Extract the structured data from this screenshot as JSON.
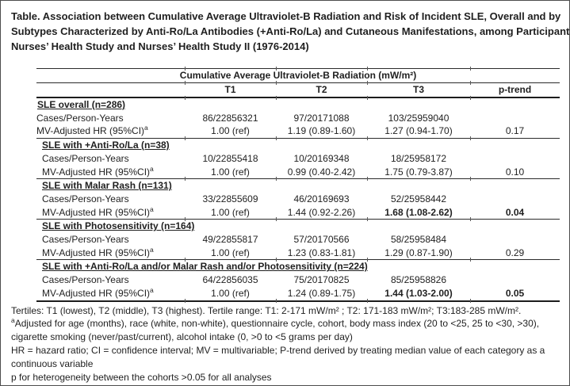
{
  "title": {
    "lines": [
      "Table. Association between Cumulative Average Ultraviolet-B Radiation and Risk of Incident SLE, Overall and by",
      "Subtypes Characterized by Anti-Ro/La Antibodies (+Anti-Ro/La) and Cutaneous Manifestations, among Participants in",
      "Nurses’ Health Study and Nurses’ Health Study II (1976-2014)"
    ]
  },
  "table": {
    "span_header": "Cumulative Average Ultraviolet-B Radiation (mW/m²)",
    "columns": [
      "T1",
      "T2",
      "T3",
      "p-trend"
    ],
    "sections": [
      {
        "header": "SLE overall (n=286)",
        "indent": false,
        "rows": [
          {
            "label": "Cases/Person-Years",
            "label_sup": "",
            "values": [
              "86/22856321",
              "97/20171088",
              "103/25959040",
              ""
            ],
            "bold": [
              false,
              false,
              false,
              false
            ]
          },
          {
            "label": "MV-Adjusted HR (95%CI)",
            "label_sup": "a",
            "values": [
              "1.00 (ref)",
              "1.19 (0.89-1.60)",
              "1.27 (0.94-1.70)",
              "0.17"
            ],
            "bold": [
              false,
              false,
              false,
              false
            ]
          }
        ]
      },
      {
        "header": "SLE with +Anti-Ro/La (n=38)",
        "indent": true,
        "rows": [
          {
            "label": "Cases/Person-Years",
            "label_sup": "",
            "values": [
              "10/22855418",
              "10/20169348",
              "18/25958172",
              ""
            ],
            "bold": [
              false,
              false,
              false,
              false
            ]
          },
          {
            "label": "MV-Adjusted HR (95%CI)",
            "label_sup": "a",
            "values": [
              "1.00 (ref)",
              "0.99 (0.40-2.42)",
              "1.75 (0.79-3.87)",
              "0.10"
            ],
            "bold": [
              false,
              false,
              false,
              false
            ]
          }
        ]
      },
      {
        "header": "SLE with Malar Rash (n=131)",
        "indent": true,
        "rows": [
          {
            "label": "Cases/Person-Years",
            "label_sup": "",
            "values": [
              "33/22855609",
              "46/20169693",
              "52/25958442",
              ""
            ],
            "bold": [
              false,
              false,
              false,
              false
            ]
          },
          {
            "label": "MV-Adjusted HR (95%CI)",
            "label_sup": "a",
            "values": [
              "1.00 (ref)",
              "1.44 (0.92-2.26)",
              "1.68 (1.08-2.62)",
              "0.04"
            ],
            "bold": [
              false,
              false,
              true,
              true
            ]
          }
        ]
      },
      {
        "header": "SLE with Photosensitivity (n=164)",
        "indent": true,
        "rows": [
          {
            "label": "Cases/Person-Years",
            "label_sup": "",
            "values": [
              "49/22855817",
              "57/20170566",
              "58/25958484",
              ""
            ],
            "bold": [
              false,
              false,
              false,
              false
            ]
          },
          {
            "label": "MV-Adjusted HR (95%CI)",
            "label_sup": "a",
            "values": [
              "1.00 (ref)",
              "1.23 (0.83-1.81)",
              "1.29 (0.87-1.90)",
              "0.29"
            ],
            "bold": [
              false,
              false,
              false,
              false
            ]
          }
        ]
      },
      {
        "header": "SLE with +Anti-Ro/La and/or Malar Rash and/or Photosensitivity (n=224)",
        "indent": true,
        "rows": [
          {
            "label": "Cases/Person-Years",
            "label_sup": "",
            "values": [
              "64/22856035",
              "75/20170825",
              "85/25958826",
              ""
            ],
            "bold": [
              false,
              false,
              false,
              false
            ]
          },
          {
            "label": "MV-Adjusted HR (95%CI)",
            "label_sup": "a",
            "values": [
              "1.00 (ref)",
              "1.24 (0.89-1.75)",
              "1.44 (1.03-2.00)",
              "0.05"
            ],
            "bold": [
              false,
              false,
              true,
              true
            ]
          }
        ]
      }
    ]
  },
  "footnotes": [
    {
      "sup": "",
      "text": "Tertiles: T1 (lowest), T2 (middle), T3 (highest). Tertile range: T1: 2-171 mW/m² ; T2: 171-183 mW/m²; T3:183-285 mW/m²."
    },
    {
      "sup": "a",
      "text": "Adjusted for age (months), race (white, non-white), questionnaire cycle, cohort, body mass index (20 to <25, 25 to <30, >30), cigarette smoking (never/past/current), alcohol intake (0, >0 to <5 grams per day)"
    },
    {
      "sup": "",
      "text": "HR = hazard ratio; CI = confidence interval; MV = multivariable; P-trend derived by treating median value of each category as a continuous variable"
    },
    {
      "sup": "",
      "text": "p for heterogeneity between the cohorts >0.05 for all analyses"
    }
  ]
}
